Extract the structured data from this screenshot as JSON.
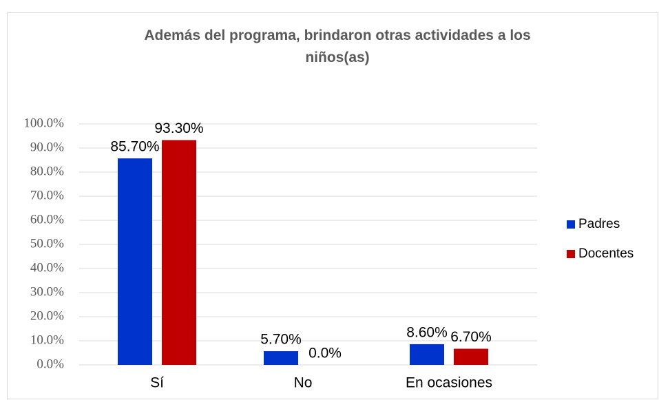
{
  "chart_data": {
    "type": "bar",
    "title": "Además del programa,  brindaron otras actividades a los niños(as)",
    "categories": [
      "Sí",
      "No",
      "En ocasiones"
    ],
    "series": [
      {
        "name": "Padres",
        "color": "#0033cc",
        "values": [
          85.7,
          5.7,
          8.6
        ],
        "value_labels": [
          "85.70%",
          "5.70%",
          "8.60%"
        ]
      },
      {
        "name": "Docentes",
        "color": "#c00000",
        "values": [
          93.3,
          0,
          6.7
        ],
        "value_labels": [
          "93.30%",
          "0.0%",
          "6.70%"
        ]
      }
    ],
    "ylim": [
      0,
      100
    ],
    "yticks": [
      {
        "value": 0,
        "label": "0.0%"
      },
      {
        "value": 10,
        "label": "10.0%"
      },
      {
        "value": 20,
        "label": "20.0%"
      },
      {
        "value": 30,
        "label": "30.0%"
      },
      {
        "value": 40,
        "label": "40.0%"
      },
      {
        "value": 50,
        "label": "50.0%"
      },
      {
        "value": 60,
        "label": "60.0%"
      },
      {
        "value": 70,
        "label": "70.0%"
      },
      {
        "value": 80,
        "label": "80.0%"
      },
      {
        "value": 90,
        "label": "90.0%"
      },
      {
        "value": 100,
        "label": "100.0%"
      }
    ],
    "grid": true,
    "legend": "right"
  }
}
